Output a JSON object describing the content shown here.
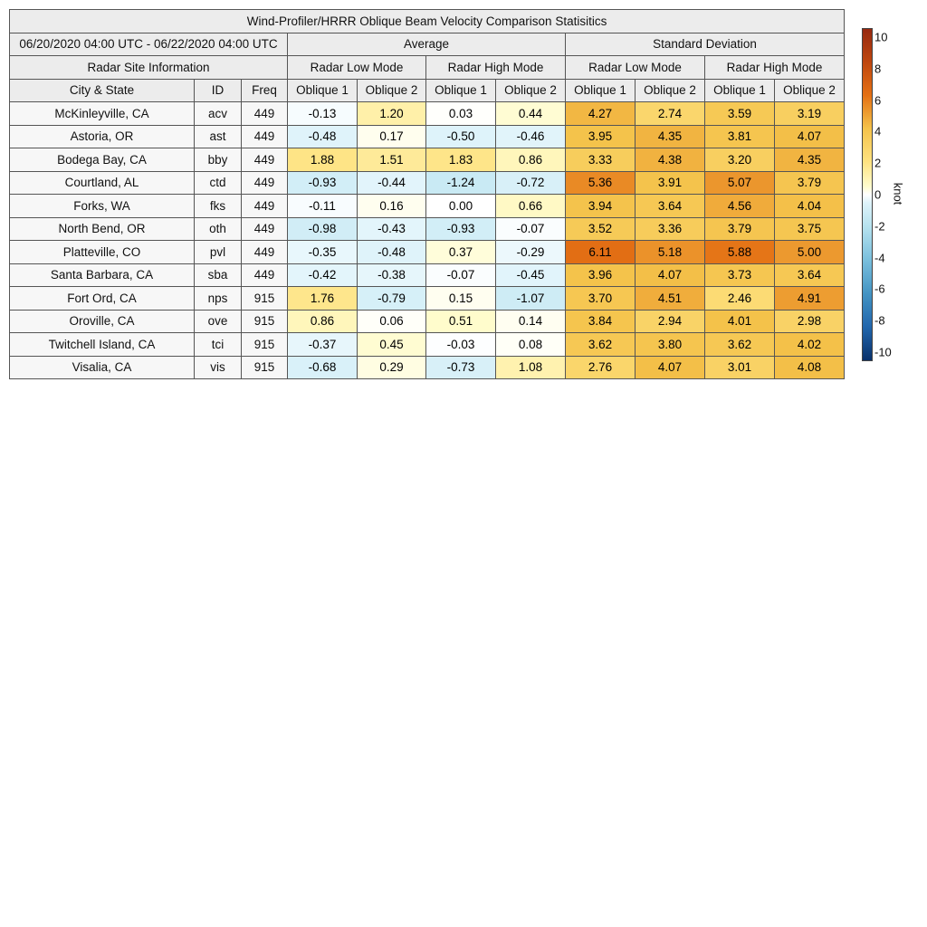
{
  "chart_data": {
    "type": "table",
    "title": "Wind-Profiler/HRRR Oblique Beam Velocity Comparison Statisitics",
    "period": "06/20/2020 04:00 UTC - 06/22/2020 04:00 UTC",
    "group_average": "Average",
    "group_stddev": "Standard Deviation",
    "site_info": "Radar Site Information",
    "mode_low": "Radar Low Mode",
    "mode_high": "Radar High Mode",
    "columns": [
      "City & State",
      "ID",
      "Freq",
      "Oblique 1",
      "Oblique 2",
      "Oblique 1",
      "Oblique 2",
      "Oblique 1",
      "Oblique 2",
      "Oblique 1",
      "Oblique 2"
    ],
    "rows": [
      {
        "city": "McKinleyville, CA",
        "id": "acv",
        "freq": "449",
        "values": [
          "-0.13",
          "1.20",
          "0.03",
          "0.44",
          "4.27",
          "2.74",
          "3.59",
          "3.19"
        ]
      },
      {
        "city": "Astoria, OR",
        "id": "ast",
        "freq": "449",
        "values": [
          "-0.48",
          "0.17",
          "-0.50",
          "-0.46",
          "3.95",
          "4.35",
          "3.81",
          "4.07"
        ]
      },
      {
        "city": "Bodega Bay, CA",
        "id": "bby",
        "freq": "449",
        "values": [
          "1.88",
          "1.51",
          "1.83",
          "0.86",
          "3.33",
          "4.38",
          "3.20",
          "4.35"
        ]
      },
      {
        "city": "Courtland, AL",
        "id": "ctd",
        "freq": "449",
        "values": [
          "-0.93",
          "-0.44",
          "-1.24",
          "-0.72",
          "5.36",
          "3.91",
          "5.07",
          "3.79"
        ]
      },
      {
        "city": "Forks, WA",
        "id": "fks",
        "freq": "449",
        "values": [
          "-0.11",
          "0.16",
          "0.00",
          "0.66",
          "3.94",
          "3.64",
          "4.56",
          "4.04"
        ]
      },
      {
        "city": "North Bend, OR",
        "id": "oth",
        "freq": "449",
        "values": [
          "-0.98",
          "-0.43",
          "-0.93",
          "-0.07",
          "3.52",
          "3.36",
          "3.79",
          "3.75"
        ]
      },
      {
        "city": "Platteville, CO",
        "id": "pvl",
        "freq": "449",
        "values": [
          "-0.35",
          "-0.48",
          "0.37",
          "-0.29",
          "6.11",
          "5.18",
          "5.88",
          "5.00"
        ]
      },
      {
        "city": "Santa Barbara, CA",
        "id": "sba",
        "freq": "449",
        "values": [
          "-0.42",
          "-0.38",
          "-0.07",
          "-0.45",
          "3.96",
          "4.07",
          "3.73",
          "3.64"
        ]
      },
      {
        "city": "Fort Ord, CA",
        "id": "nps",
        "freq": "915",
        "values": [
          "1.76",
          "-0.79",
          "0.15",
          "-1.07",
          "3.70",
          "4.51",
          "2.46",
          "4.91"
        ]
      },
      {
        "city": "Oroville, CA",
        "id": "ove",
        "freq": "915",
        "values": [
          "0.86",
          "0.06",
          "0.51",
          "0.14",
          "3.84",
          "2.94",
          "4.01",
          "2.98"
        ]
      },
      {
        "city": "Twitchell Island, CA",
        "id": "tci",
        "freq": "915",
        "values": [
          "-0.37",
          "0.45",
          "-0.03",
          "0.08",
          "3.62",
          "3.80",
          "3.62",
          "4.02"
        ]
      },
      {
        "city": "Visalia, CA",
        "id": "vis",
        "freq": "915",
        "values": [
          "-0.68",
          "0.29",
          "-0.73",
          "1.08",
          "2.76",
          "4.07",
          "3.01",
          "4.08"
        ]
      }
    ],
    "colorbar": {
      "label": "knot",
      "range": [
        -10,
        10
      ],
      "ticks": [
        "10",
        "8",
        "6",
        "4",
        "2",
        "0",
        "-2",
        "-4",
        "-6",
        "-8",
        "-10"
      ],
      "colormap": "diverging blue-white-yellow-orange-red"
    }
  }
}
